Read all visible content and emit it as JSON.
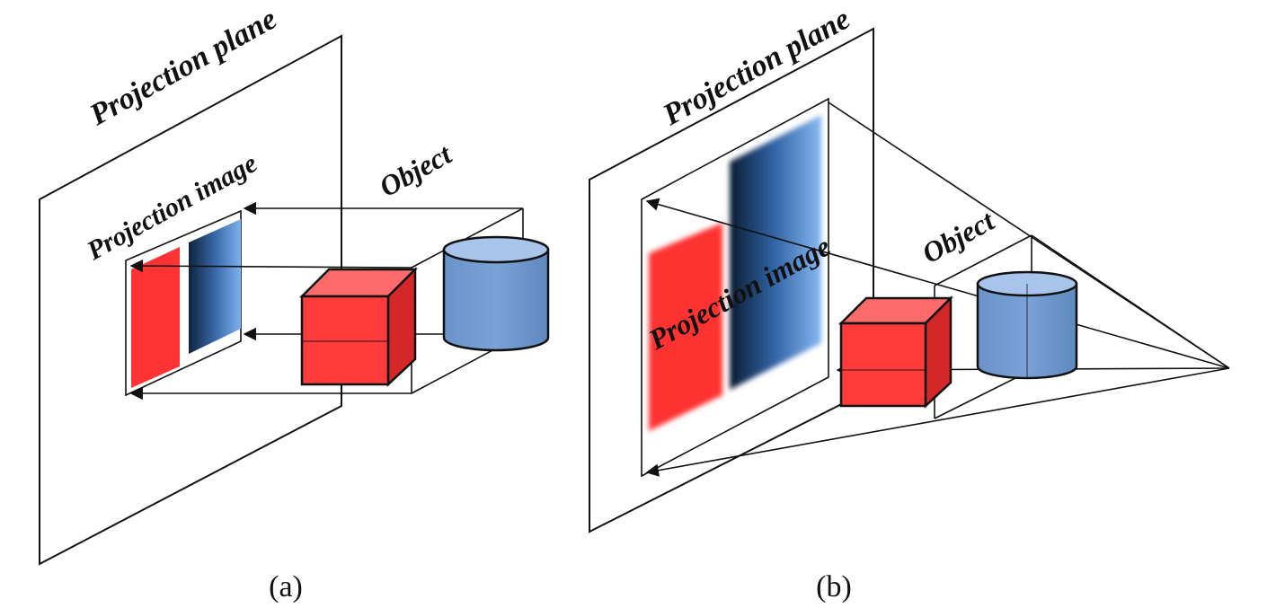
{
  "panel_a": {
    "caption": "(a)",
    "projection_plane_label": "Projection plane",
    "projection_image_label": "Projection image",
    "object_label": "Object"
  },
  "panel_b": {
    "caption": "(b)",
    "projection_plane_label": "Projection plane",
    "projection_image_label": "Projection image",
    "object_label": "Object"
  },
  "colors": {
    "cube_front": "#ff3b3b",
    "cube_top": "#ff6a6a",
    "cube_side": "#d42828",
    "cylinder": "#6f98cf",
    "cylinder_top": "#a8c4ea",
    "image_red": "#ff3333",
    "image_blue_dark": "#0d2440",
    "image_blue_light": "#5f9be0"
  }
}
